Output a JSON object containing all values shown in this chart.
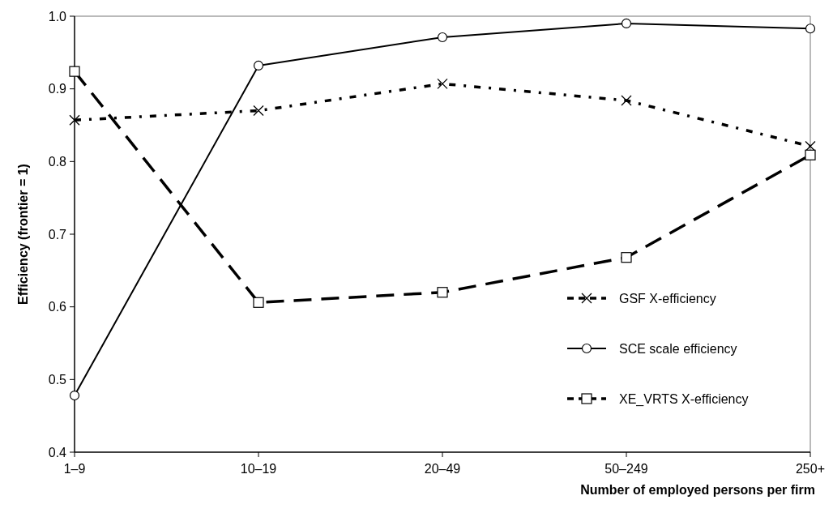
{
  "chart_data": {
    "type": "line",
    "xlabel": "Number of employed persons per firm",
    "ylabel": "Efficiency (frontier = 1)",
    "categories": [
      "1–9",
      "10–19",
      "20–49",
      "50–249",
      "250+"
    ],
    "ylim": [
      0.4,
      1.0
    ],
    "yticks": [
      0.4,
      0.5,
      0.6,
      0.7,
      0.8,
      0.9,
      {
        "value": 1,
        "label": "1.0"
      }
    ],
    "grid": false,
    "legend": "bottom right",
    "series": [
      {
        "name": "GSF X-efficiency",
        "color": "#000000",
        "marker": "cross",
        "line_style": "dotted",
        "values": [
          0.857,
          0.87,
          0.907,
          0.884,
          0.821
        ]
      },
      {
        "name": "SCE scale efficiency",
        "color": "#000000",
        "marker": "circle",
        "line_style": "solid",
        "values": [
          0.478,
          0.932,
          0.971,
          0.99,
          0.983
        ]
      },
      {
        "name": "XE_VRTS X-efficiency",
        "color": "#000000",
        "marker": "square",
        "line_style": "dashed",
        "values": [
          0.924,
          0.606,
          0.62,
          0.668,
          0.809
        ]
      }
    ]
  }
}
